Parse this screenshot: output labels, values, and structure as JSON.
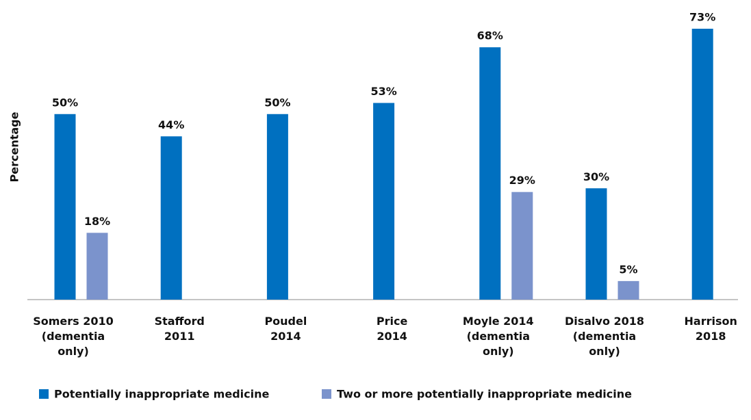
{
  "chart_data": {
    "type": "bar",
    "y_label": "Percentage",
    "categories": [
      "Somers 2010\n(dementia\nonly)",
      "Stafford\n2011",
      "Poudel\n2014",
      "Price\n2014",
      "Moyle 2014\n(dementia\nonly)",
      "Disalvo 2018\n(dementia\nonly)",
      "Harrison\n2018"
    ],
    "series": [
      {
        "name": "Potentially inappropriate medicine",
        "color": "#0070c0",
        "values": [
          50,
          44,
          50,
          53,
          68,
          30,
          73
        ],
        "value_labels": [
          "50%",
          "44%",
          "50%",
          "53%",
          "68%",
          "30%",
          "73%"
        ]
      },
      {
        "name": "Two or more potentially inappropriate medicine",
        "color": "#7b93cc",
        "values": [
          18,
          null,
          null,
          null,
          29,
          5,
          null
        ],
        "value_labels": [
          "18%",
          null,
          null,
          null,
          "29%",
          "5%",
          null
        ]
      }
    ],
    "legend": "bottom"
  }
}
